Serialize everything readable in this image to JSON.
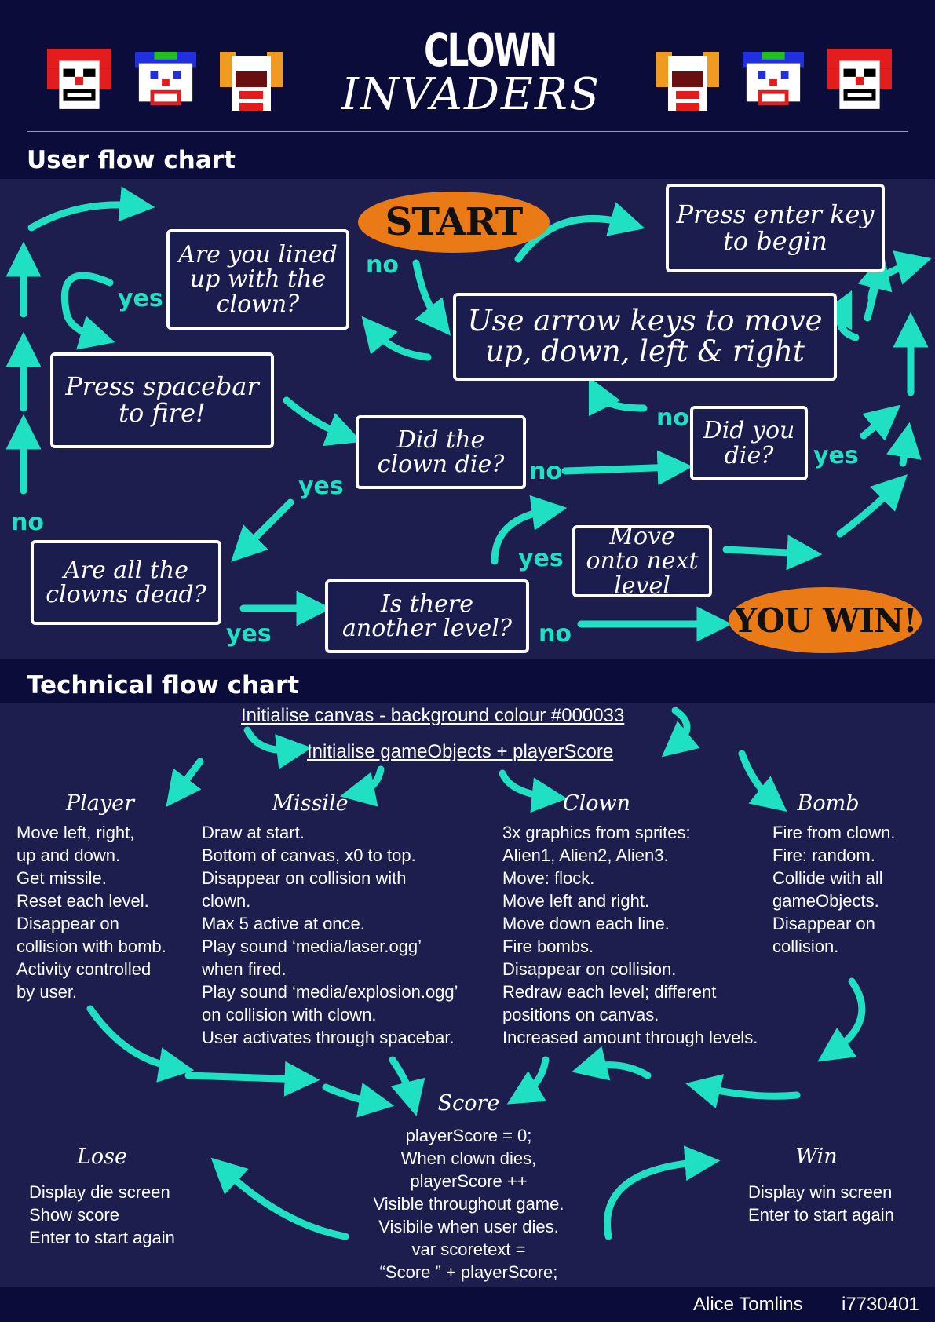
{
  "header": {
    "title_line1": "CLOWN",
    "title_line2": "INVADERS"
  },
  "user_flow": {
    "heading": "User flow chart",
    "start": "START",
    "press_enter": "Press enter key to begin",
    "lined_up": "Are you lined up with the clown?",
    "arrow_keys": "Use arrow keys to move up, down, left & right",
    "spacebar": "Press spacebar to fire!",
    "clown_die": "Did the clown die?",
    "you_die": "Did you die?",
    "all_dead": "Are all the clowns dead?",
    "another_level": "Is there another level?",
    "next_level": "Move onto next level",
    "you_win": "YOU WIN!",
    "yes": "yes",
    "no": "no"
  },
  "technical_flow": {
    "heading": "Technical flow chart",
    "init_canvas": "Initialise canvas - background colour #000033",
    "init_objects": "Initialise gameObjects + playerScore",
    "player": {
      "title": "Player",
      "lines": [
        "Move left, right,",
        "up and down.",
        "Get missile.",
        "Reset each level.",
        "Disappear on",
        "collision with bomb.",
        "Activity controlled",
        "by user."
      ]
    },
    "missile": {
      "title": "Missile",
      "lines": [
        "Draw at start.",
        "Bottom of canvas, x0 to top.",
        "Disappear on collision with",
        "clown.",
        "Max 5 active at once.",
        "Play sound ‘media/laser.ogg’",
        "when fired.",
        "Play sound ‘media/explosion.ogg’",
        "on collision with clown.",
        "User activates through spacebar."
      ]
    },
    "clown": {
      "title": "Clown",
      "lines": [
        "3x graphics from sprites:",
        "Alien1, Alien2, Alien3.",
        "Move: flock.",
        "Move left and right.",
        "Move down each line.",
        "Fire bombs.",
        "Disappear on collision.",
        "Redraw each level; different",
        "positions on canvas.",
        "Increased amount through levels."
      ]
    },
    "bomb": {
      "title": "Bomb",
      "lines": [
        "Fire from clown.",
        "Fire: random.",
        "Collide with all",
        "gameObjects.",
        "Disappear on",
        "collision."
      ]
    },
    "score": {
      "title": "Score",
      "lines": [
        "playerScore = 0;",
        "When clown dies,",
        "playerScore ++",
        "Visible throughout game.",
        "Visibile when user dies.",
        "var scoretext =",
        "“Score ” + playerScore;"
      ]
    },
    "lose": {
      "title": "Lose",
      "lines": [
        "Display die screen",
        "Show score",
        "Enter to start again"
      ]
    },
    "win": {
      "title": "Win",
      "lines": [
        "Display win screen",
        "Enter to start again"
      ]
    }
  },
  "footer": {
    "author": "Alice Tomlins",
    "id": "i7730401"
  },
  "colors": {
    "background": "#0b0c3a",
    "panel": "#1d1e4e",
    "arrow": "#1fe0c2",
    "oval": "#ea7a16"
  }
}
